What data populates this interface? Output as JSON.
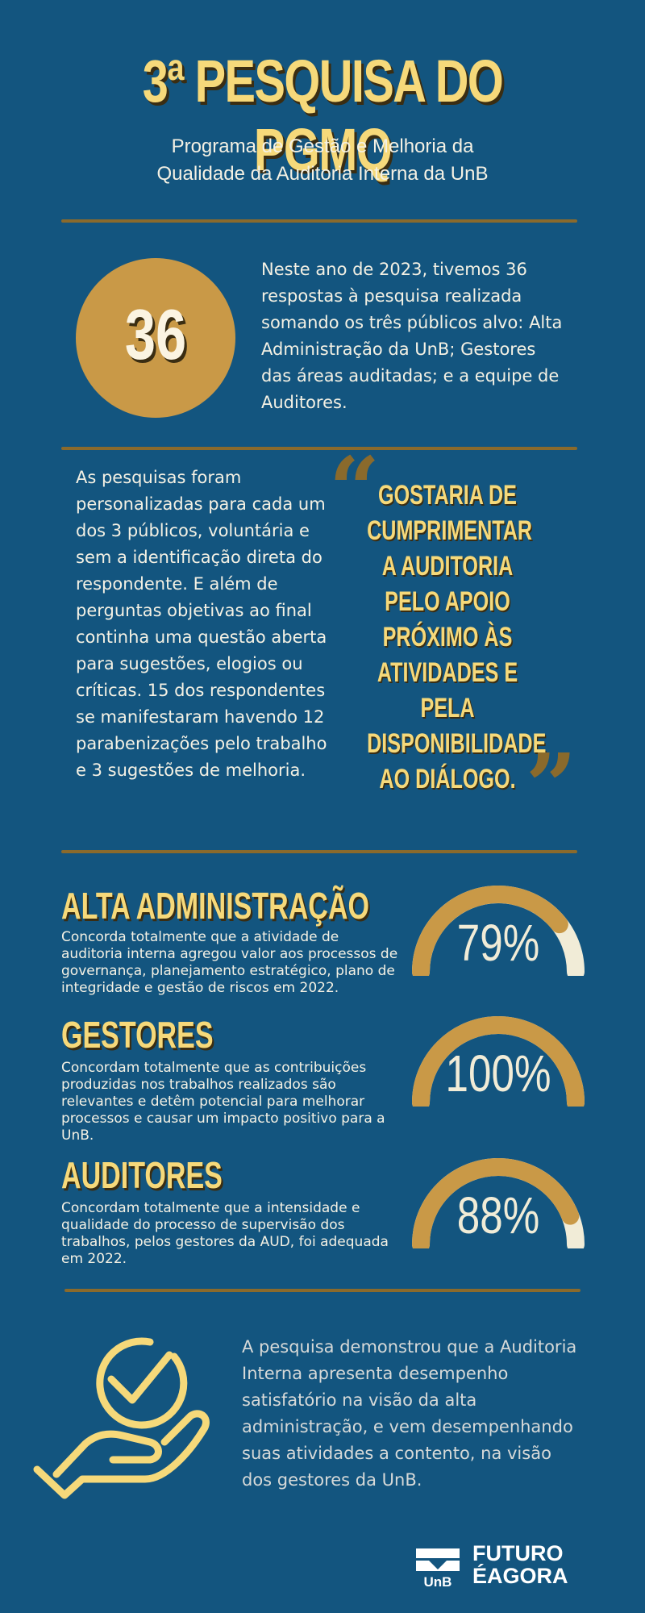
{
  "header": {
    "title": "3ª PESQUISA DO PGMQ",
    "subtitle_line1": "Programa de Gestão e Melhoria da",
    "subtitle_line2": "Qualidade da Auditoria Interna da UnB"
  },
  "intro": {
    "count": "36",
    "text": "Neste ano de 2023, tivemos 36 respostas à pesquisa realizada somando os três públicos alvo: Alta Administração da UnB; Gestores das áreas auditadas; e a equipe de Auditores."
  },
  "method": {
    "text": "As pesquisas foram personalizadas para cada um dos 3 públicos, voluntária e sem a identificação direta do respondente. E além de perguntas objetivas ao final continha uma questão aberta para sugestões, elogios ou críticas. 15 dos respondentes se manifestaram havendo 12 parabenizações pelo trabalho e 3 sugestões de melhoria."
  },
  "quote": {
    "open_mark": "“",
    "close_mark": "”",
    "text": "GOSTARIA DE CUMPRIMENTAR A AUDITORIA PELO APOIO PRÓXIMO ÀS ATIVIDADES E PELA DISPONIBILIDADE AO DIÁLOGO."
  },
  "results": [
    {
      "title": "ALTA ADMINISTRAÇÃO",
      "description": "Concorda totalmente que a atividade de auditoria interna agregou valor aos processos de governança, planejamento estratégico, plano de integridade e gestão de riscos em 2022.",
      "percent_label": "79%",
      "percent": 79
    },
    {
      "title": "GESTORES",
      "description": "Concordam totalmente que as contribuições produzidas nos trabalhos realizados são relevantes e detêm potencial para melhorar processos e causar um impacto positivo para a UnB.",
      "percent_label": "100%",
      "percent": 100
    },
    {
      "title": "AUDITORES",
      "description": "Concordam totalmente que a intensidade e qualidade do processo de supervisão dos trabalhos, pelos gestores da AUD, foi adequada em 2022.",
      "percent_label": "88%",
      "percent": 88
    }
  ],
  "conclusion": {
    "icon": "hand-checkmark-icon",
    "text": "A pesquisa demonstrou que a Auditoria Interna apresenta desempenho satisfatório na visão da alta administração, e vem desempenhando suas atividades a contento, na visão dos gestores da UnB."
  },
  "footer": {
    "unb_label": "UnB",
    "futuro_line1": "FUTURO",
    "futuro_line2": "ÉAGORA"
  },
  "colors": {
    "background": "#13557f",
    "gold": "#f6d97a",
    "ochre": "#c99947",
    "divider": "#8a6a2c",
    "cream": "#f1ecd7"
  }
}
